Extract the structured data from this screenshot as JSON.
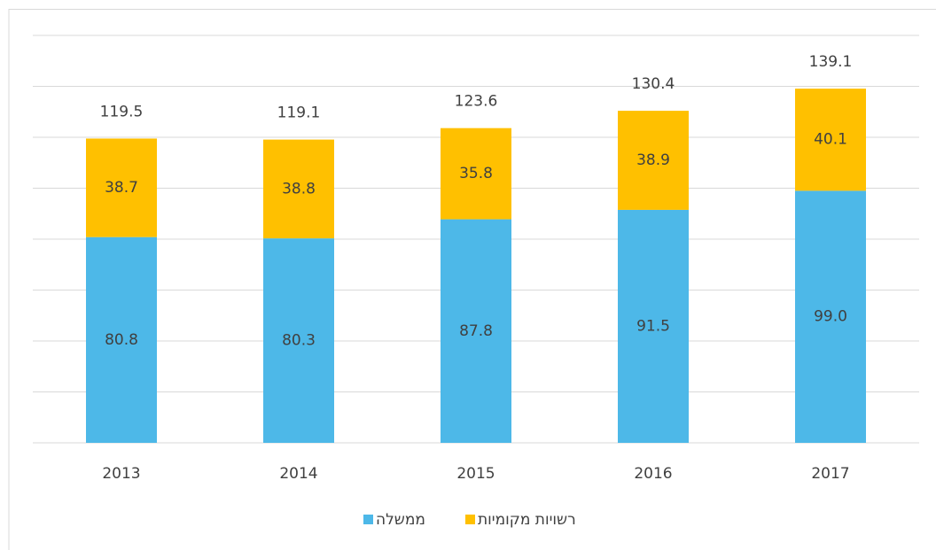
{
  "chart_data": {
    "type": "stacked-bar",
    "categories": [
      "2013",
      "2014",
      "2015",
      "2016",
      "2017"
    ],
    "series": [
      {
        "name": "ממשלה",
        "color": "#4db8e8",
        "values": [
          80.8,
          80.3,
          87.8,
          91.5,
          99.0
        ],
        "value_labels": [
          "80.8",
          "80.3",
          "87.8",
          "91.5",
          "99.0"
        ]
      },
      {
        "name": "רשויות מקומיות",
        "color": "#ffc000",
        "values": [
          38.7,
          38.8,
          35.8,
          38.9,
          40.1
        ],
        "value_labels": [
          "38.7",
          "38.8",
          "35.8",
          "38.9",
          "40.1"
        ]
      }
    ],
    "totals": [
      119.5,
      119.1,
      123.6,
      130.4,
      139.1
    ],
    "ylim": [
      0,
      160
    ],
    "yticks": [
      0,
      20,
      40,
      60,
      80,
      100,
      120,
      140,
      160
    ],
    "grid": true,
    "legend": "bottom"
  }
}
